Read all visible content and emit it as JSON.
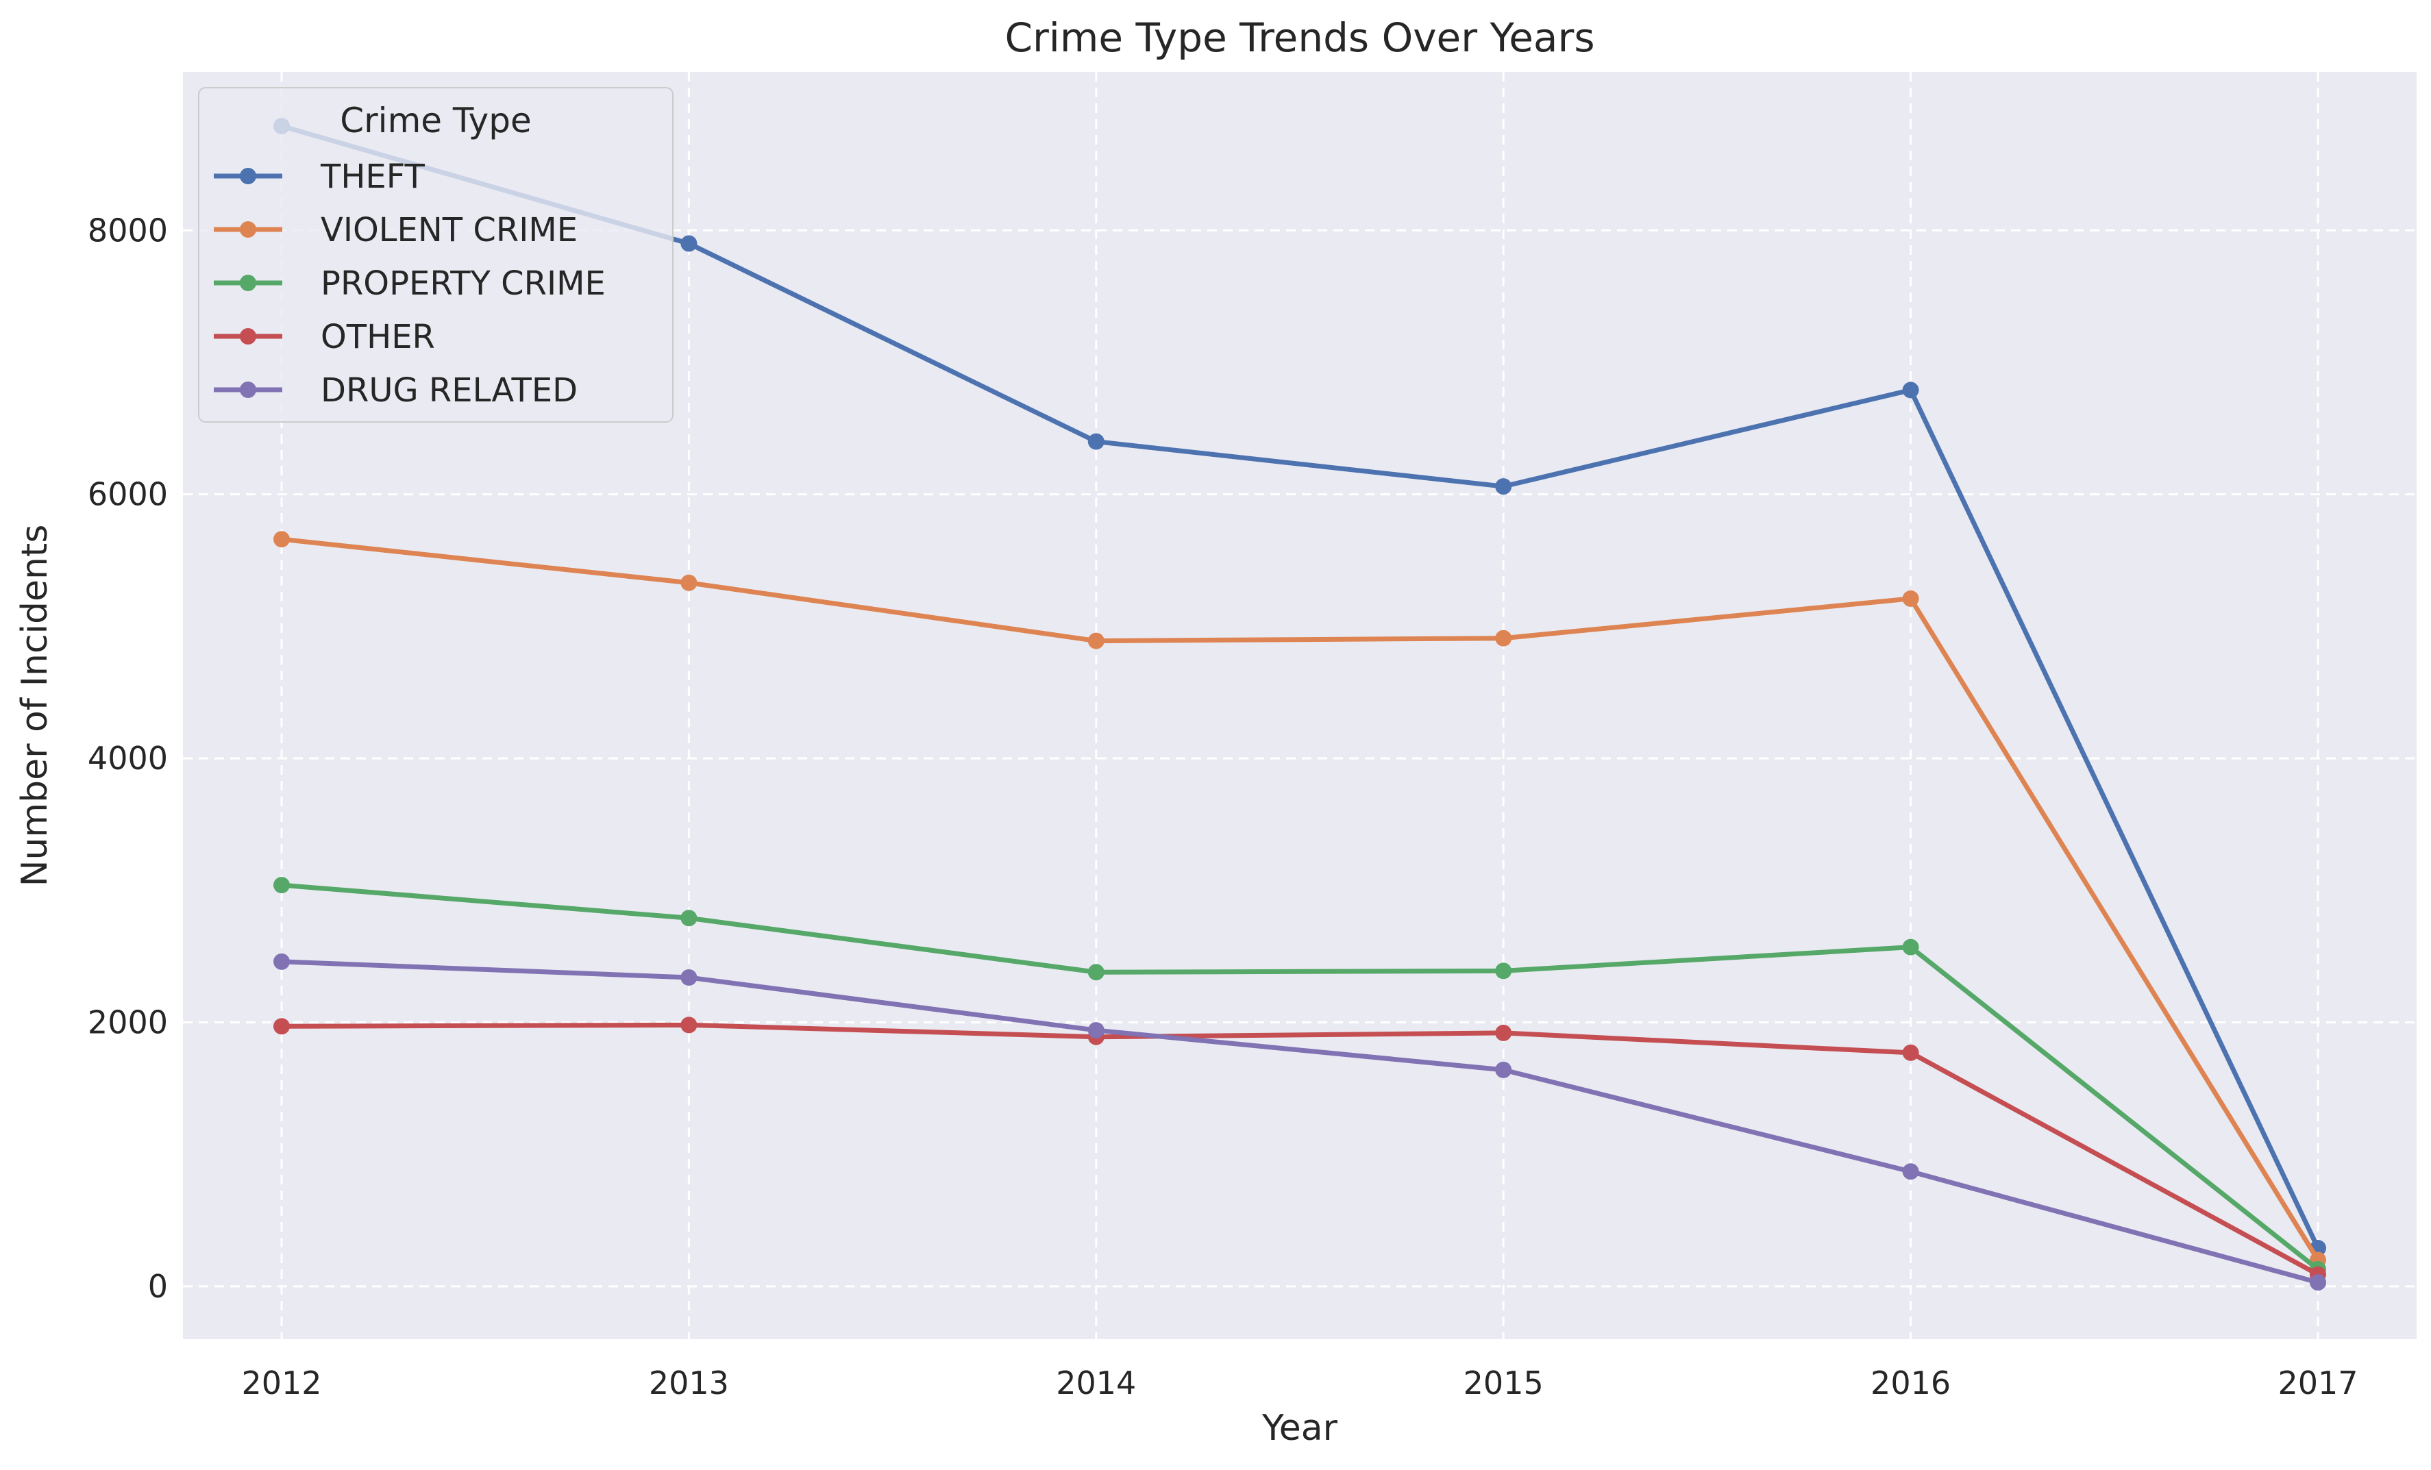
{
  "chart_data": {
    "type": "line",
    "title": "Crime Type Trends Over Years",
    "xlabel": "Year",
    "ylabel": "Number of Incidents",
    "x": [
      "2012",
      "2013",
      "2014",
      "2015",
      "2016",
      "2017"
    ],
    "ylim": [
      -400,
      9200
    ],
    "yticks": [
      0,
      2000,
      4000,
      6000,
      8000
    ],
    "grid": true,
    "grid_style": "dashed",
    "legend": {
      "title": "Crime Type",
      "placement": "top-left"
    },
    "series": [
      {
        "name": "THEFT",
        "color": "#4c72b0",
        "values": [
          8790,
          7900,
          6400,
          6060,
          6790,
          290
        ]
      },
      {
        "name": "VIOLENT CRIME",
        "color": "#dd8452",
        "values": [
          5660,
          5330,
          4890,
          4910,
          5210,
          200
        ]
      },
      {
        "name": "PROPERTY CRIME",
        "color": "#55a868",
        "values": [
          3040,
          2790,
          2380,
          2390,
          2570,
          130
        ]
      },
      {
        "name": "OTHER",
        "color": "#c44e52",
        "values": [
          1970,
          1980,
          1890,
          1920,
          1770,
          90
        ]
      },
      {
        "name": "DRUG RELATED",
        "color": "#8172b3",
        "values": [
          2460,
          2340,
          1940,
          1640,
          870,
          30
        ]
      }
    ]
  },
  "style": {
    "plot_background": "#eaeaf2",
    "grid_color": "#ffffff",
    "text_color": "#262626"
  }
}
